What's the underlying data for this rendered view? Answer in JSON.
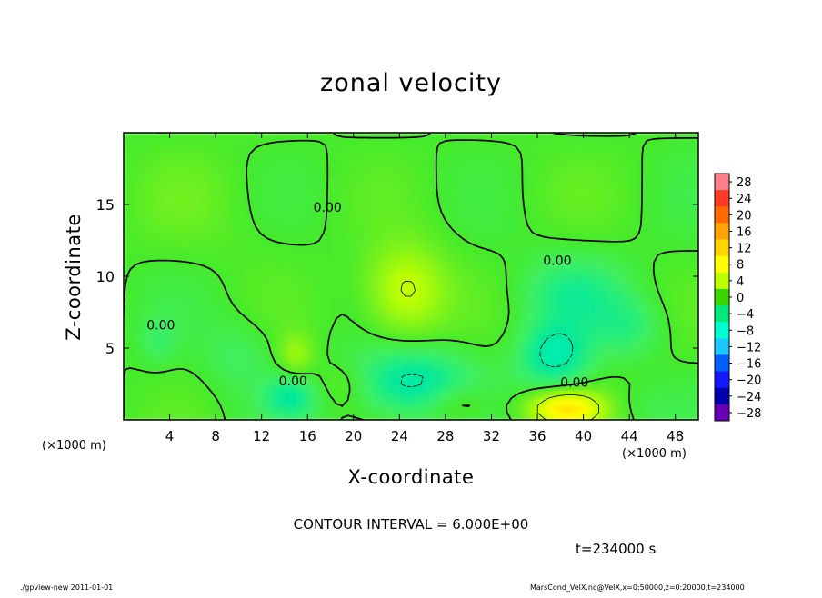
{
  "chart_data": {
    "type": "heatmap",
    "title": "zonal velocity",
    "xlabel": "X-coordinate",
    "ylabel": "Z-coordinate",
    "x_unit_label": "(×1000 m)",
    "xlim": [
      0,
      50
    ],
    "ylim": [
      0,
      20
    ],
    "x_ticks": [
      "4",
      "8",
      "12",
      "16",
      "20",
      "24",
      "28",
      "32",
      "36",
      "40",
      "44",
      "48"
    ],
    "y_ticks": [
      "5",
      "10",
      "15"
    ],
    "colorbar_labels": [
      "28",
      "24",
      "20",
      "16",
      "12",
      "8",
      "4",
      "0",
      "−4",
      "−8",
      "−12",
      "−16",
      "−20",
      "−24",
      "−28"
    ],
    "colorbar_colors": [
      "#ff7f8c",
      "#ff3a24",
      "#ff6a00",
      "#ffa300",
      "#ffd500",
      "#ffff00",
      "#bfff00",
      "#3ad400",
      "#00e87a",
      "#00ffd0",
      "#1ac8ff",
      "#0060ff",
      "#1418ff",
      "#0000b0",
      "#6a00b4"
    ],
    "background_value": 0,
    "features": [
      {
        "x": 24.5,
        "z": 9,
        "rx": 3.5,
        "rz": 3.2,
        "value": 7
      },
      {
        "x": 38.5,
        "z": 0.8,
        "rx": 3.2,
        "rz": 1.2,
        "value": 12
      },
      {
        "x": 37.5,
        "z": 4.5,
        "rx": 3,
        "rz": 2.2,
        "value": -7
      },
      {
        "x": 39,
        "z": 8.8,
        "rx": 4.5,
        "rz": 2.5,
        "value": -4
      },
      {
        "x": 44,
        "z": 6.5,
        "rx": 3,
        "rz": 2,
        "value": -3
      },
      {
        "x": 25,
        "z": 2.6,
        "rx": 5,
        "rz": 2.4,
        "value": -7
      },
      {
        "x": 14.5,
        "z": 1.6,
        "rx": 2.2,
        "rz": 1.4,
        "value": -5
      },
      {
        "x": 15,
        "z": 4.6,
        "rx": 1.5,
        "rz": 1.4,
        "value": 4
      },
      {
        "x": 10,
        "z": 4.5,
        "rx": 3,
        "rz": 2.5,
        "value": -2
      },
      {
        "x": 3,
        "z": 5.5,
        "rx": 1.5,
        "rz": 1.5,
        "value": -2
      },
      {
        "x": 29,
        "z": 1.2,
        "rx": 3,
        "rz": 1.4,
        "value": 3
      },
      {
        "x": 19,
        "z": 2.5,
        "rx": 2.5,
        "rz": 1.5,
        "value": 2
      },
      {
        "x": 7,
        "z": 15,
        "rx": 7,
        "rz": 4,
        "value": 1
      },
      {
        "x": 36,
        "z": 16,
        "rx": 7,
        "rz": 3,
        "value": 0.5
      },
      {
        "x": 45,
        "z": 1,
        "rx": 3,
        "rz": 1.2,
        "value": -1
      }
    ],
    "contour_labels": [
      {
        "text": "0.00",
        "x": 16.5,
        "z": 14.5
      },
      {
        "text": "0.00",
        "x": 36.5,
        "z": 10.8
      },
      {
        "text": "0.00",
        "x": 2,
        "z": 6.3
      },
      {
        "text": "0.00",
        "x": 13.5,
        "z": 2.4
      },
      {
        "text": "0.00",
        "x": 38,
        "z": 2.3
      }
    ]
  },
  "contour_interval": "CONTOUR INTERVAL = 6.000E+00",
  "time_label": "t=234000 s",
  "footer": {
    "left": "./gpview-new   2011-01-01",
    "right": "MarsCond_VelX.nc@VelX,x=0:50000,z=0:20000,t=234000"
  }
}
